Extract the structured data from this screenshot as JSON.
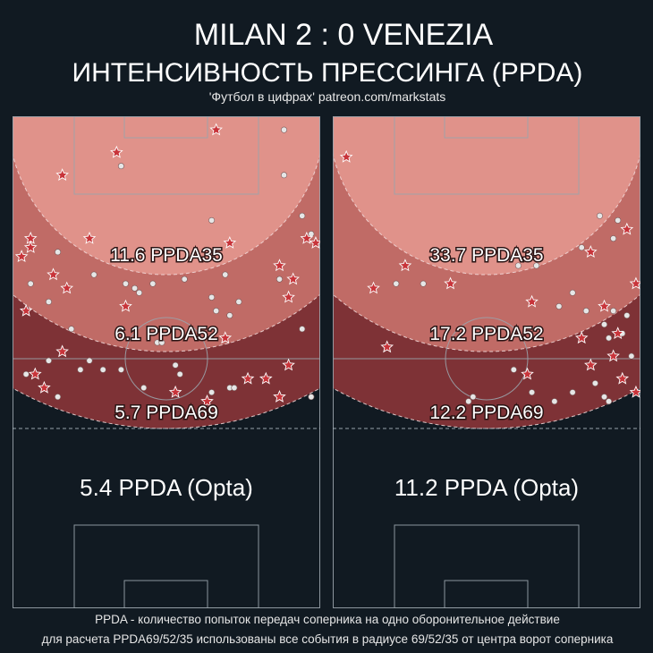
{
  "header": {
    "match": "MILAN  2 : 0  VENEZIA",
    "title": "ИНТЕНСИВНОСТЬ ПРЕССИНГА (PPDA)",
    "source": "'Футбол в цифрах' patreon.com/markstats"
  },
  "colors": {
    "background": "#111a22",
    "zone35": "#e0928a",
    "zone52": "#c06b66",
    "zone69": "#7e3236",
    "pitch_line": "#9aa3ab",
    "arc": "#f3dede",
    "star": "#c8343a",
    "dot": "#e6e6e6"
  },
  "chart_data": [
    {
      "type": "scatter",
      "team": "MILAN",
      "zones": [
        {
          "radius": 35,
          "label": "11.6 PPDA35",
          "value": 11.6
        },
        {
          "radius": 52,
          "label": "6.1 PPDA52",
          "value": 6.1
        },
        {
          "radius": 69,
          "label": "5.7 PPDA69",
          "value": 5.7
        }
      ],
      "opta_label": "5.4 PPDA (Opta)",
      "opta_value": 5.4,
      "xlim": [
        0,
        68
      ],
      "ylim": [
        0,
        73
      ],
      "stars": [
        [
          45,
          3
        ],
        [
          23,
          8
        ],
        [
          11,
          13
        ],
        [
          4,
          27
        ],
        [
          17,
          27
        ],
        [
          9,
          35
        ],
        [
          3,
          43
        ],
        [
          25,
          42
        ],
        [
          12,
          38
        ],
        [
          4,
          29
        ],
        [
          2,
          31
        ],
        [
          59,
          33
        ],
        [
          65,
          27
        ],
        [
          62,
          36
        ],
        [
          67,
          28
        ],
        [
          61,
          40
        ],
        [
          47,
          49
        ],
        [
          48,
          28
        ],
        [
          11,
          52
        ],
        [
          61,
          55
        ],
        [
          7,
          60
        ],
        [
          5,
          57
        ],
        [
          56,
          58
        ],
        [
          52,
          58
        ],
        [
          36,
          61
        ],
        [
          43,
          63
        ],
        [
          59,
          62
        ]
      ],
      "dots": [
        [
          60,
          3
        ],
        [
          24,
          11
        ],
        [
          60,
          13
        ],
        [
          44,
          23
        ],
        [
          64,
          22
        ],
        [
          66,
          26
        ],
        [
          10,
          30
        ],
        [
          47,
          35
        ],
        [
          59,
          36
        ],
        [
          18,
          35
        ],
        [
          38,
          36
        ],
        [
          25,
          37
        ],
        [
          27,
          38
        ],
        [
          31,
          37
        ],
        [
          44,
          40
        ],
        [
          28,
          39
        ],
        [
          50,
          41
        ],
        [
          4,
          37
        ],
        [
          8,
          41
        ],
        [
          13,
          47
        ],
        [
          45,
          43
        ],
        [
          64,
          47
        ],
        [
          48,
          44
        ],
        [
          32,
          50
        ],
        [
          33,
          50
        ],
        [
          17,
          54
        ],
        [
          24,
          56
        ],
        [
          15,
          56
        ],
        [
          8,
          54
        ],
        [
          3,
          57
        ],
        [
          20,
          56
        ],
        [
          36,
          55
        ],
        [
          37,
          57
        ],
        [
          44,
          61
        ],
        [
          48,
          60
        ],
        [
          66,
          62
        ],
        [
          10,
          62
        ],
        [
          29,
          60
        ],
        [
          49,
          60
        ]
      ]
    },
    {
      "type": "scatter",
      "team": "VENEZIA",
      "zones": [
        {
          "radius": 35,
          "label": "33.7 PPDA35",
          "value": 33.7
        },
        {
          "radius": 52,
          "label": "17.2 PPDA52",
          "value": 17.2
        },
        {
          "radius": 69,
          "label": "12.2 PPDA69",
          "value": 12.2
        }
      ],
      "opta_label": "11.2 PPDA (Opta)",
      "opta_value": 11.2,
      "xlim": [
        0,
        68
      ],
      "ylim": [
        0,
        73
      ],
      "stars": [
        [
          3,
          9
        ],
        [
          65,
          25
        ],
        [
          57,
          30
        ],
        [
          16,
          33
        ],
        [
          9,
          38
        ],
        [
          26,
          37
        ],
        [
          67,
          37
        ],
        [
          44,
          41
        ],
        [
          60,
          42
        ],
        [
          63,
          48
        ],
        [
          12,
          51
        ],
        [
          62,
          53
        ],
        [
          57,
          55
        ],
        [
          55,
          49
        ],
        [
          43,
          57
        ],
        [
          64,
          58
        ],
        [
          67,
          61
        ]
      ],
      "dots": [
        [
          59,
          22
        ],
        [
          63,
          23
        ],
        [
          62,
          27
        ],
        [
          55,
          29
        ],
        [
          34,
          31
        ],
        [
          41,
          33
        ],
        [
          45,
          33
        ],
        [
          20,
          37
        ],
        [
          14,
          37
        ],
        [
          53,
          39
        ],
        [
          50,
          42
        ],
        [
          56,
          43
        ],
        [
          62,
          43
        ],
        [
          65,
          44
        ],
        [
          60,
          46
        ],
        [
          64,
          48
        ],
        [
          61,
          49
        ],
        [
          66,
          53
        ],
        [
          40,
          56
        ],
        [
          44,
          61
        ],
        [
          31,
          62
        ],
        [
          30,
          63
        ],
        [
          49,
          63
        ],
        [
          53,
          61
        ],
        [
          60,
          62
        ],
        [
          61,
          63
        ],
        [
          58,
          59
        ]
      ]
    }
  ],
  "footer": {
    "line1": "PPDA - количество попыток передач соперника на одно оборонительное действие",
    "line2": "для расчета PPDA69/52/35 использованы все события в радиусе 69/52/35 от центра ворот соперника"
  }
}
